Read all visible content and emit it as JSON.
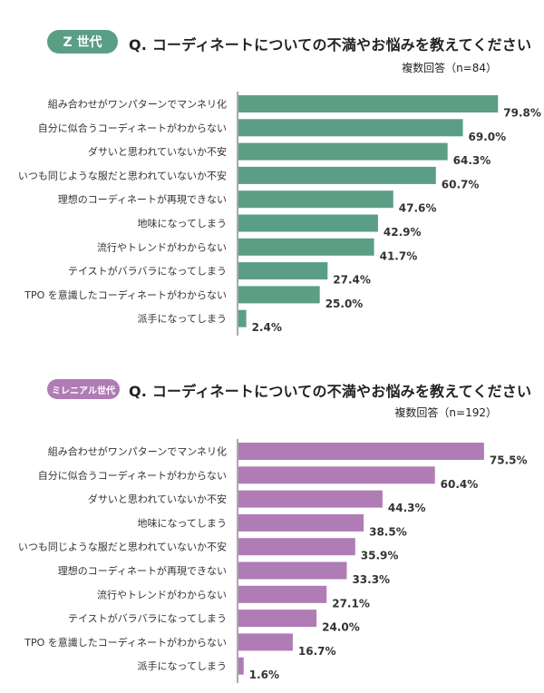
{
  "chart_data": [
    {
      "type": "bar",
      "orientation": "horizontal",
      "badge": "Z 世代",
      "title": "Q. コーディネートについての不満やお悩みを教えてください",
      "subtitle": "複数回答（n=84）",
      "color": "#5a9e85",
      "categories": [
        "組み合わせがワンパターンでマンネリ化",
        "自分に似合うコーディネートがわからない",
        "ダサいと思われていないか不安",
        "いつも同じような服だと思われていないか不安",
        "理想のコーディネートが再現できない",
        "地味になってしまう",
        "流行やトレンドがわからない",
        "テイストがバラバラになってしまう",
        "TPO を意識したコーディネートがわからない",
        "派手になってしまう"
      ],
      "values": [
        79.8,
        69.0,
        64.3,
        60.7,
        47.6,
        42.9,
        41.7,
        27.4,
        25.0,
        2.4
      ],
      "value_labels": [
        "79.8%",
        "69.0%",
        "64.3%",
        "60.7%",
        "47.6%",
        "42.9%",
        "41.7%",
        "27.4%",
        "25.0%",
        "2.4%"
      ],
      "xlim": [
        0,
        80
      ]
    },
    {
      "type": "bar",
      "orientation": "horizontal",
      "badge": "ミレニアル世代",
      "title": "Q. コーディネートについての不満やお悩みを教えてください",
      "subtitle": "複数回答（n=192）",
      "color": "#b07cb5",
      "categories": [
        "組み合わせがワンパターンでマンネリ化",
        "自分に似合うコーディネートがわからない",
        "ダサいと思われていないか不安",
        "地味になってしまう",
        "いつも同じような服だと思われていないか不安",
        "理想のコーディネートが再現できない",
        "流行やトレンドがわからない",
        "テイストがバラバラになってしまう",
        "TPO を意識したコーディネートがわからない",
        "派手になってしまう"
      ],
      "values": [
        75.5,
        60.4,
        44.3,
        38.5,
        35.9,
        33.3,
        27.1,
        24.0,
        16.7,
        1.6
      ],
      "value_labels": [
        "75.5%",
        "60.4%",
        "44.3%",
        "38.5%",
        "35.9%",
        "33.3%",
        "27.1%",
        "24.0%",
        "16.7%",
        "1.6%"
      ],
      "xlim": [
        0,
        80
      ]
    }
  ]
}
